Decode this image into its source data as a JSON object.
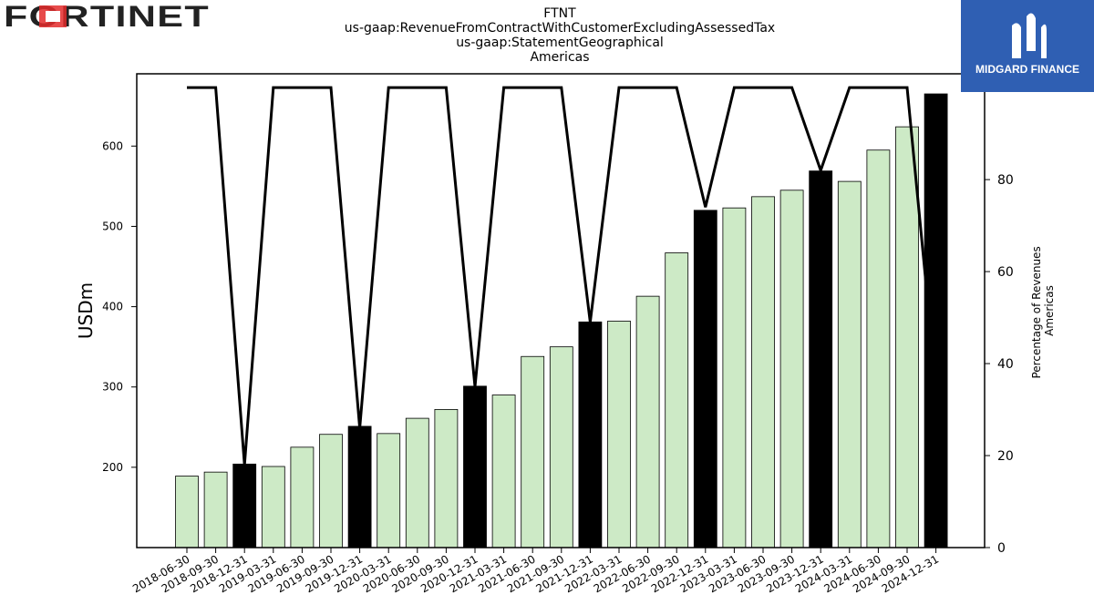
{
  "header": {
    "company_logo_text": "FORTINET",
    "brand_logo_text": "MIDGARD FINANCE"
  },
  "chart_data": {
    "type": "bar",
    "title": [
      "FTNT",
      "us-gaap:RevenueFromContractWithCustomerExcludingAssessedTax",
      "us-gaap:StatementGeographical",
      "Americas"
    ],
    "ylabel": "USDm",
    "y2label": [
      "Percentage of Revenues",
      "Americas"
    ],
    "ylim": [
      100,
      690
    ],
    "y2lim": [
      0,
      103
    ],
    "yticks": [
      200,
      300,
      400,
      500,
      600
    ],
    "y2ticks": [
      0,
      20,
      40,
      60,
      80,
      100
    ],
    "categories": [
      "2018-06-30",
      "2018-09-30",
      "2018-12-31",
      "2019-03-31",
      "2019-06-30",
      "2019-09-30",
      "2019-12-31",
      "2020-03-31",
      "2020-06-30",
      "2020-09-30",
      "2020-12-31",
      "2021-03-31",
      "2021-06-30",
      "2021-09-30",
      "2021-12-31",
      "2022-03-31",
      "2022-06-30",
      "2022-09-30",
      "2022-12-31",
      "2023-03-31",
      "2023-06-30",
      "2023-09-30",
      "2023-12-31",
      "2024-03-31",
      "2024-06-30",
      "2024-09-30",
      "2024-12-31"
    ],
    "values": [
      189,
      194,
      204,
      201,
      225,
      241,
      251,
      242,
      261,
      272,
      301,
      290,
      338,
      350,
      381,
      382,
      413,
      467,
      520,
      523,
      537,
      545,
      569,
      556,
      595,
      624,
      665
    ],
    "percent": [
      100,
      100,
      18,
      100,
      100,
      100,
      26,
      100,
      100,
      100,
      35,
      100,
      100,
      100,
      49,
      100,
      100,
      100,
      74,
      100,
      100,
      100,
      82,
      100,
      100,
      100,
      35
    ],
    "colors": {
      "quarter": "#cdeac6",
      "annual": "#000000",
      "line": "#000000"
    }
  }
}
